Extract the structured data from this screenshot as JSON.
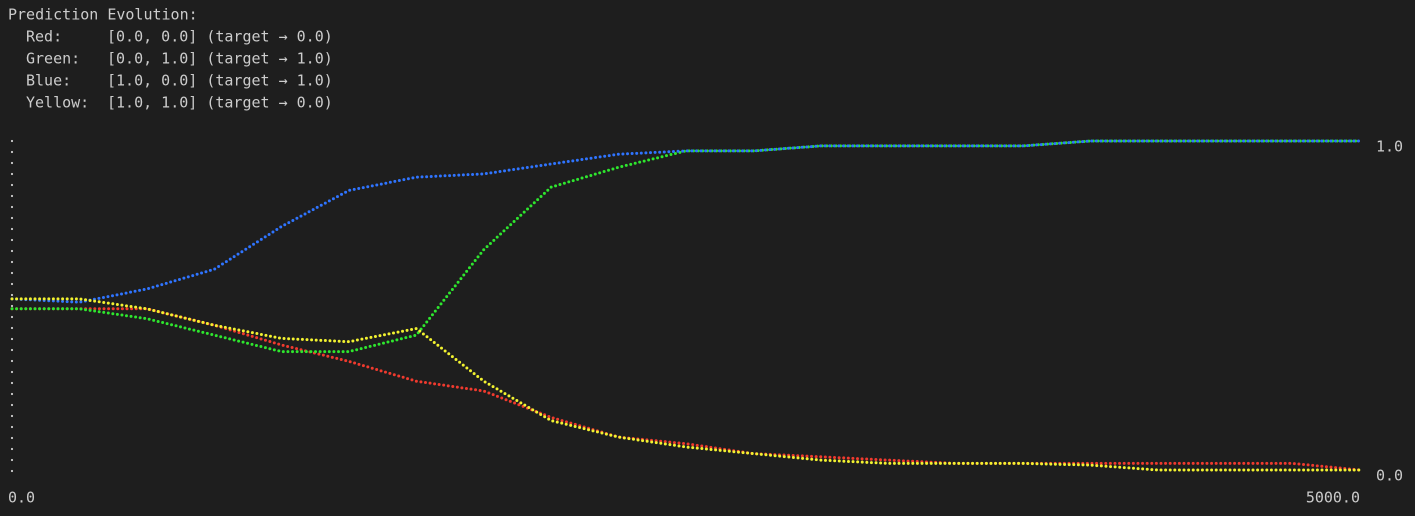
{
  "chart_data": {
    "type": "line",
    "title": "Prediction Evolution:",
    "x": [
      0,
      250,
      500,
      750,
      1000,
      1250,
      1500,
      1750,
      2000,
      2250,
      2500,
      2750,
      3000,
      3250,
      3500,
      3750,
      4000,
      4250,
      4500,
      4750,
      5000
    ],
    "series": [
      {
        "name": "Red:",
        "label": "[0.0, 0.0] (target → 0.0)",
        "color": "#f03a2e",
        "values": [
          0.49,
          0.49,
          0.49,
          0.44,
          0.38,
          0.33,
          0.27,
          0.24,
          0.16,
          0.1,
          0.08,
          0.05,
          0.04,
          0.03,
          0.02,
          0.02,
          0.02,
          0.02,
          0.02,
          0.02,
          0.0
        ]
      },
      {
        "name": "Green:",
        "label": "[0.0, 1.0] (target → 1.0)",
        "color": "#2ee62e",
        "values": [
          0.49,
          0.49,
          0.46,
          0.41,
          0.36,
          0.36,
          0.41,
          0.67,
          0.86,
          0.92,
          0.97,
          0.97,
          0.985,
          0.985,
          0.985,
          0.985,
          1.0,
          1.0,
          1.0,
          1.0,
          1.0
        ]
      },
      {
        "name": "Blue:",
        "label": "[1.0, 0.0] (target → 1.0)",
        "color": "#2f74ff",
        "values": [
          0.52,
          0.51,
          0.55,
          0.61,
          0.74,
          0.85,
          0.89,
          0.9,
          0.93,
          0.96,
          0.97,
          0.97,
          0.985,
          0.985,
          0.985,
          0.985,
          1.0,
          1.0,
          1.0,
          1.0,
          1.0
        ]
      },
      {
        "name": "Yellow:",
        "label": "[1.0, 1.0] (target → 0.0)",
        "color": "#f2f230",
        "values": [
          0.52,
          0.52,
          0.49,
          0.44,
          0.4,
          0.39,
          0.43,
          0.27,
          0.15,
          0.1,
          0.07,
          0.05,
          0.03,
          0.02,
          0.02,
          0.02,
          0.015,
          0.0,
          0.0,
          0.0,
          0.0
        ]
      }
    ],
    "xlim": [
      0,
      5000
    ],
    "xticks": [
      {
        "value": 0,
        "label": "0.0"
      },
      {
        "value": 5000,
        "label": "5000.0"
      }
    ],
    "ylim": [
      0,
      1
    ],
    "yticks": [
      {
        "value": 0,
        "label": "0.0"
      },
      {
        "value": 1,
        "label": "1.0"
      }
    ]
  }
}
